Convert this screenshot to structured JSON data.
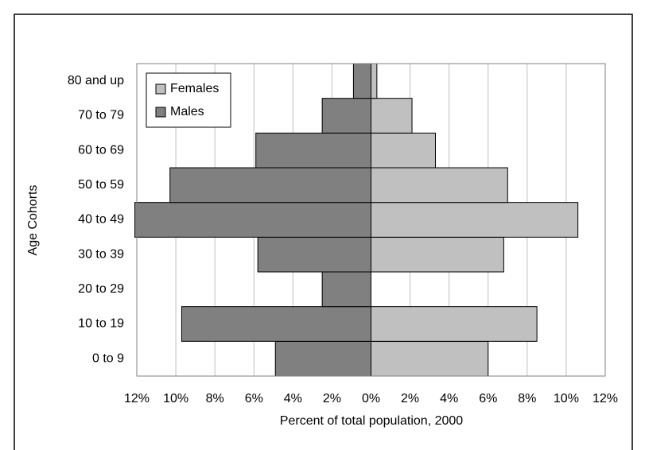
{
  "chart_data": {
    "type": "pyramid",
    "categories": [
      "0 to 9",
      "10 to 19",
      "20 to 29",
      "30 to 39",
      "40 to 49",
      "50 to 59",
      "60 to 69",
      "70 to 79",
      "80 and up"
    ],
    "series": [
      {
        "name": "Females",
        "color": "#c0c0c0",
        "values": [
          6.0,
          8.5,
          0,
          6.8,
          10.6,
          7.0,
          3.3,
          2.1,
          0.3
        ]
      },
      {
        "name": "Males",
        "color": "#808080",
        "values": [
          -4.9,
          -9.7,
          -2.5,
          -5.8,
          -12.1,
          -10.3,
          -5.9,
          -2.5,
          -0.9
        ]
      }
    ],
    "xlim": [
      -12,
      12
    ],
    "xticks": [
      {
        "value": -12,
        "label": "12%"
      },
      {
        "value": -10,
        "label": "10%"
      },
      {
        "value": -8,
        "label": "8%"
      },
      {
        "value": -6,
        "label": "6%"
      },
      {
        "value": -4,
        "label": "4%"
      },
      {
        "value": -2,
        "label": "2%"
      },
      {
        "value": 0,
        "label": "0%"
      },
      {
        "value": 2,
        "label": "2%"
      },
      {
        "value": 4,
        "label": "4%"
      },
      {
        "value": 6,
        "label": "6%"
      },
      {
        "value": 8,
        "label": "8%"
      },
      {
        "value": 10,
        "label": "10%"
      },
      {
        "value": 12,
        "label": "12%"
      }
    ],
    "xlabel": "Percent of total population, 2000",
    "ylabel": "Age Cohorts",
    "grid": true,
    "legend": "top-left"
  }
}
